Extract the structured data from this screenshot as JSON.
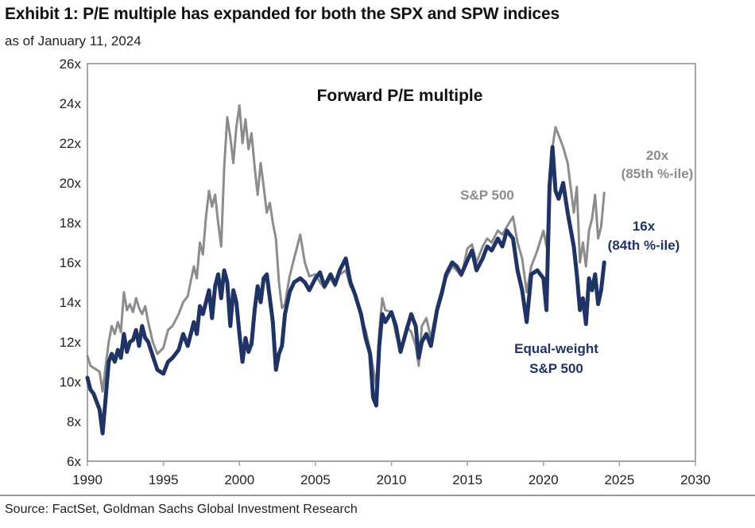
{
  "header": {
    "title": "Exhibit 1: P/E multiple has expanded for both the SPX and SPW indices",
    "subtitle": "as of January 11, 2024"
  },
  "footer": {
    "source": "Source: FactSet, Goldman Sachs Global Investment Research"
  },
  "colors": {
    "spx": "#8c8c8c",
    "spw": "#1f3464",
    "frame": "#a6a6a6"
  },
  "chart_data": {
    "type": "line",
    "title": "Forward P/E multiple",
    "xlabel": "",
    "ylabel": "",
    "xlim": [
      1990,
      2030
    ],
    "ylim": [
      6,
      26
    ],
    "x_ticks": [
      1990,
      1995,
      2000,
      2005,
      2010,
      2015,
      2020,
      2025,
      2030
    ],
    "x_tick_labels": [
      "1990",
      "1995",
      "2000",
      "2005",
      "2010",
      "2015",
      "2020",
      "2025",
      "2030"
    ],
    "y_ticks": [
      6,
      8,
      10,
      12,
      14,
      16,
      18,
      20,
      22,
      24,
      26
    ],
    "y_tick_labels": [
      "6x",
      "8x",
      "10x",
      "12x",
      "14x",
      "16x",
      "18x",
      "20x",
      "22x",
      "24x",
      "26x"
    ],
    "grid": false,
    "annotations": [
      {
        "text": "S&P 500",
        "series": "S&P 500"
      },
      {
        "text": "20x",
        "series": "S&P 500"
      },
      {
        "text": "(85th %-ile)",
        "series": "S&P 500"
      },
      {
        "text": "16x",
        "series": "Equal-weight S&P 500"
      },
      {
        "text": "(84th %-ile)",
        "series": "Equal-weight S&P 500"
      },
      {
        "text": "Equal-weight",
        "series": "Equal-weight S&P 500"
      },
      {
        "text": "S&P 500",
        "series": "Equal-weight S&P 500"
      }
    ],
    "series": [
      {
        "name": "S&P 500",
        "x": [
          1990.0,
          1990.2,
          1990.4,
          1990.6,
          1990.8,
          1991.0,
          1991.2,
          1991.4,
          1991.6,
          1991.8,
          1992.0,
          1992.2,
          1992.4,
          1992.6,
          1992.8,
          1993.0,
          1993.2,
          1993.4,
          1993.6,
          1993.8,
          1994.0,
          1994.3,
          1994.6,
          1995.0,
          1995.3,
          1995.6,
          1996.0,
          1996.3,
          1996.6,
          1997.0,
          1997.2,
          1997.4,
          1997.6,
          1997.8,
          1998.0,
          1998.2,
          1998.4,
          1998.6,
          1998.8,
          1999.0,
          1999.2,
          1999.4,
          1999.6,
          1999.8,
          2000.0,
          2000.2,
          2000.4,
          2000.6,
          2000.8,
          2001.0,
          2001.2,
          2001.4,
          2001.6,
          2001.8,
          2002.0,
          2002.2,
          2002.4,
          2002.6,
          2002.8,
          2003.0,
          2003.3,
          2003.6,
          2004.0,
          2004.3,
          2004.6,
          2005.0,
          2005.3,
          2005.6,
          2006.0,
          2006.3,
          2006.6,
          2007.0,
          2007.3,
          2007.6,
          2008.0,
          2008.3,
          2008.6,
          2008.8,
          2009.0,
          2009.2,
          2009.4,
          2009.6,
          2010.0,
          2010.3,
          2010.6,
          2011.0,
          2011.3,
          2011.6,
          2011.8,
          2012.0,
          2012.3,
          2012.6,
          2013.0,
          2013.3,
          2013.6,
          2014.0,
          2014.3,
          2014.6,
          2015.0,
          2015.3,
          2015.6,
          2016.0,
          2016.3,
          2016.6,
          2017.0,
          2017.3,
          2017.6,
          2018.0,
          2018.3,
          2018.6,
          2018.9,
          2019.2,
          2019.6,
          2020.0,
          2020.2,
          2020.4,
          2020.6,
          2020.8,
          2021.0,
          2021.3,
          2021.6,
          2022.0,
          2022.2,
          2022.4,
          2022.6,
          2022.8,
          2023.0,
          2023.2,
          2023.4,
          2023.6,
          2023.8,
          2024.0
        ],
        "y": [
          11.3,
          10.8,
          10.7,
          10.6,
          10.5,
          9.5,
          10.8,
          12.0,
          12.8,
          12.4,
          13.0,
          12.5,
          14.5,
          13.6,
          13.9,
          13.5,
          14.2,
          13.7,
          13.4,
          13.8,
          13.0,
          12.0,
          11.4,
          11.7,
          12.6,
          12.8,
          13.4,
          14.0,
          14.3,
          15.8,
          15.2,
          17.0,
          16.4,
          18.3,
          19.6,
          18.8,
          19.4,
          18.0,
          16.8,
          20.8,
          23.3,
          22.3,
          21.0,
          22.8,
          23.9,
          22.0,
          23.2,
          21.7,
          22.5,
          20.8,
          19.4,
          21.0,
          19.8,
          18.5,
          19.0,
          18.0,
          17.2,
          15.0,
          13.7,
          13.9,
          15.3,
          16.2,
          17.4,
          16.0,
          15.3,
          15.4,
          15.0,
          14.7,
          15.2,
          14.8,
          15.4,
          15.6,
          14.8,
          14.5,
          13.2,
          12.6,
          11.6,
          10.7,
          9.8,
          12.5,
          14.2,
          13.6,
          13.5,
          12.4,
          11.5,
          12.8,
          12.5,
          11.8,
          10.8,
          12.8,
          13.2,
          12.2,
          13.8,
          14.6,
          15.2,
          15.8,
          15.6,
          15.3,
          16.7,
          16.9,
          16.0,
          16.8,
          17.2,
          17.0,
          17.6,
          17.4,
          17.8,
          18.3,
          17.0,
          16.2,
          14.5,
          15.8,
          16.6,
          17.6,
          16.8,
          19.0,
          21.8,
          22.8,
          22.4,
          21.8,
          21.0,
          18.5,
          19.8,
          16.0,
          17.0,
          15.8,
          17.6,
          18.2,
          19.4,
          17.2,
          17.8,
          19.5
        ]
      },
      {
        "name": "Equal-weight S&P 500",
        "x": [
          1990.0,
          1990.2,
          1990.4,
          1990.6,
          1990.8,
          1991.0,
          1991.2,
          1991.4,
          1991.6,
          1991.8,
          1992.0,
          1992.2,
          1992.4,
          1992.6,
          1992.8,
          1993.0,
          1993.2,
          1993.4,
          1993.6,
          1993.8,
          1994.0,
          1994.3,
          1994.6,
          1995.0,
          1995.3,
          1995.6,
          1996.0,
          1996.3,
          1996.6,
          1997.0,
          1997.2,
          1997.4,
          1997.6,
          1997.8,
          1998.0,
          1998.2,
          1998.4,
          1998.6,
          1998.8,
          1999.0,
          1999.2,
          1999.4,
          1999.6,
          1999.8,
          2000.0,
          2000.2,
          2000.4,
          2000.6,
          2000.8,
          2001.0,
          2001.2,
          2001.4,
          2001.6,
          2001.8,
          2002.0,
          2002.2,
          2002.4,
          2002.6,
          2002.8,
          2003.0,
          2003.3,
          2003.6,
          2004.0,
          2004.3,
          2004.6,
          2005.0,
          2005.3,
          2005.6,
          2006.0,
          2006.3,
          2006.6,
          2007.0,
          2007.3,
          2007.6,
          2008.0,
          2008.3,
          2008.6,
          2008.8,
          2009.0,
          2009.2,
          2009.4,
          2009.6,
          2010.0,
          2010.3,
          2010.6,
          2011.0,
          2011.3,
          2011.6,
          2011.8,
          2012.0,
          2012.3,
          2012.6,
          2013.0,
          2013.3,
          2013.6,
          2014.0,
          2014.3,
          2014.6,
          2015.0,
          2015.3,
          2015.6,
          2016.0,
          2016.3,
          2016.6,
          2017.0,
          2017.3,
          2017.6,
          2018.0,
          2018.3,
          2018.6,
          2018.9,
          2019.2,
          2019.6,
          2020.0,
          2020.2,
          2020.4,
          2020.6,
          2020.8,
          2021.0,
          2021.3,
          2021.6,
          2022.0,
          2022.2,
          2022.4,
          2022.6,
          2022.8,
          2023.0,
          2023.2,
          2023.4,
          2023.6,
          2023.8,
          2024.0
        ],
        "y": [
          10.2,
          9.6,
          9.4,
          9.0,
          8.6,
          7.4,
          9.2,
          11.0,
          11.4,
          11.0,
          11.6,
          11.2,
          12.4,
          11.5,
          12.0,
          12.1,
          12.6,
          11.8,
          12.8,
          12.2,
          12.0,
          11.3,
          10.6,
          10.4,
          11.0,
          11.2,
          11.6,
          12.4,
          11.8,
          13.0,
          12.4,
          13.8,
          13.4,
          14.0,
          14.6,
          13.2,
          14.8,
          15.4,
          14.2,
          15.6,
          15.0,
          12.8,
          14.6,
          14.0,
          12.4,
          11.0,
          12.2,
          11.5,
          11.9,
          13.6,
          14.8,
          14.0,
          15.2,
          15.4,
          14.2,
          13.0,
          10.6,
          11.4,
          11.8,
          13.4,
          14.5,
          15.0,
          15.2,
          15.0,
          14.6,
          15.2,
          15.5,
          14.8,
          15.4,
          14.9,
          15.6,
          16.2,
          15.0,
          14.4,
          13.4,
          12.2,
          11.4,
          9.2,
          8.8,
          11.8,
          13.4,
          13.0,
          13.5,
          12.8,
          11.5,
          12.6,
          13.4,
          12.8,
          11.2,
          12.0,
          12.4,
          11.8,
          13.6,
          14.4,
          15.4,
          16.0,
          15.8,
          15.4,
          16.1,
          16.6,
          15.6,
          16.2,
          16.8,
          16.6,
          17.2,
          16.8,
          17.6,
          17.2,
          15.6,
          14.6,
          13.0,
          15.4,
          15.6,
          15.2,
          13.6,
          19.8,
          21.8,
          19.6,
          19.2,
          20.0,
          18.5,
          16.8,
          15.4,
          13.6,
          14.2,
          12.9,
          15.2,
          14.6,
          15.4,
          13.9,
          14.6,
          16.0
        ]
      }
    ]
  }
}
